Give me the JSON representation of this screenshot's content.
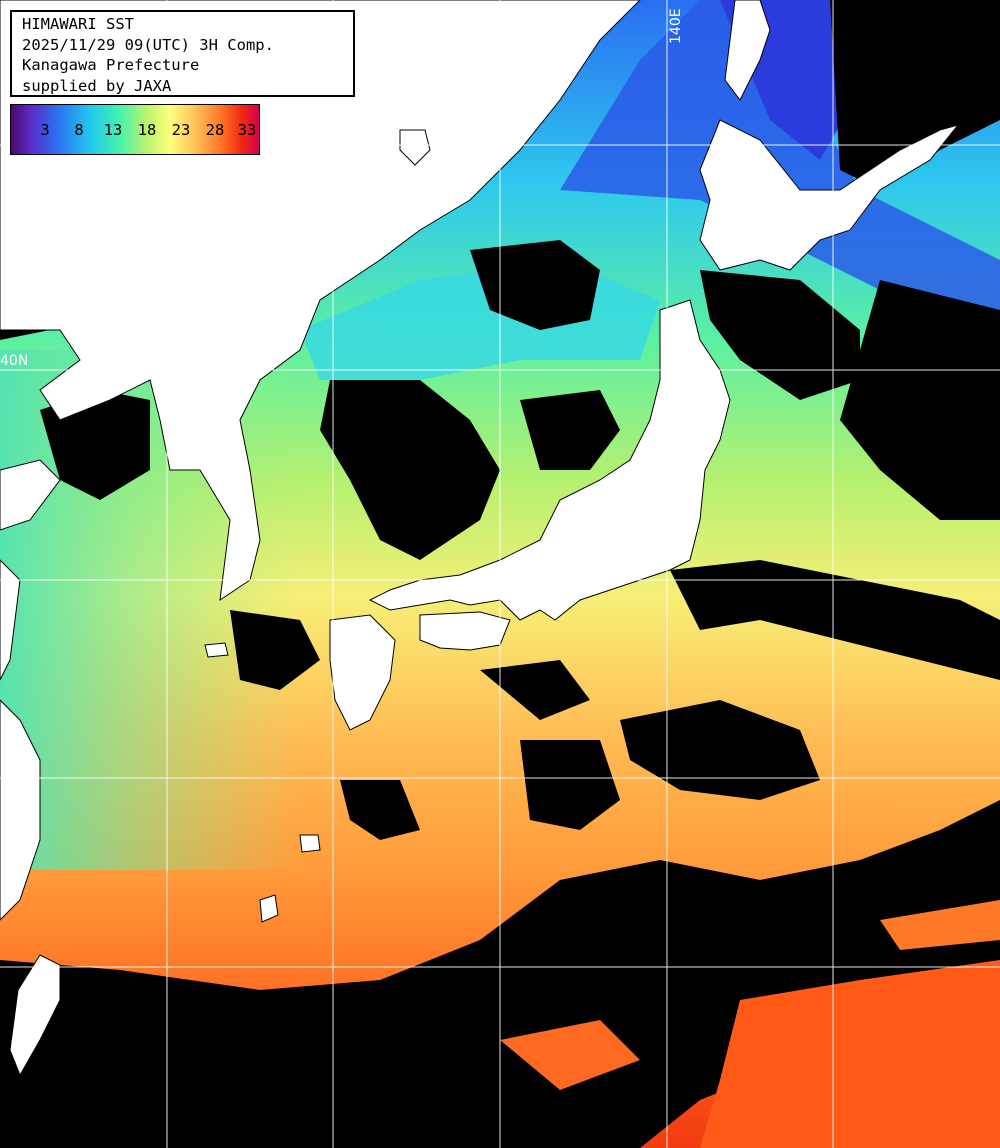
{
  "map": {
    "title_lines": [
      "HIMAWARI SST",
      "2025/11/29 09(UTC) 3H Comp.",
      "Kanagawa Prefecture",
      "supplied by JAXA"
    ],
    "legend": {
      "ticks": [
        "3",
        "8",
        "13",
        "18",
        "23",
        "28",
        "33"
      ],
      "colors": [
        "#4b0a6b",
        "#2d6cf0",
        "#22c8ee",
        "#46f2b0",
        "#ffff7a",
        "#ff7a28",
        "#f02a10",
        "#d4004e"
      ]
    },
    "grid_labels": {
      "longitude": "140E",
      "latitude": "40N"
    },
    "colors": {
      "land": "#ffffff",
      "no_data": "#000000",
      "grid": "#ffffff"
    }
  }
}
